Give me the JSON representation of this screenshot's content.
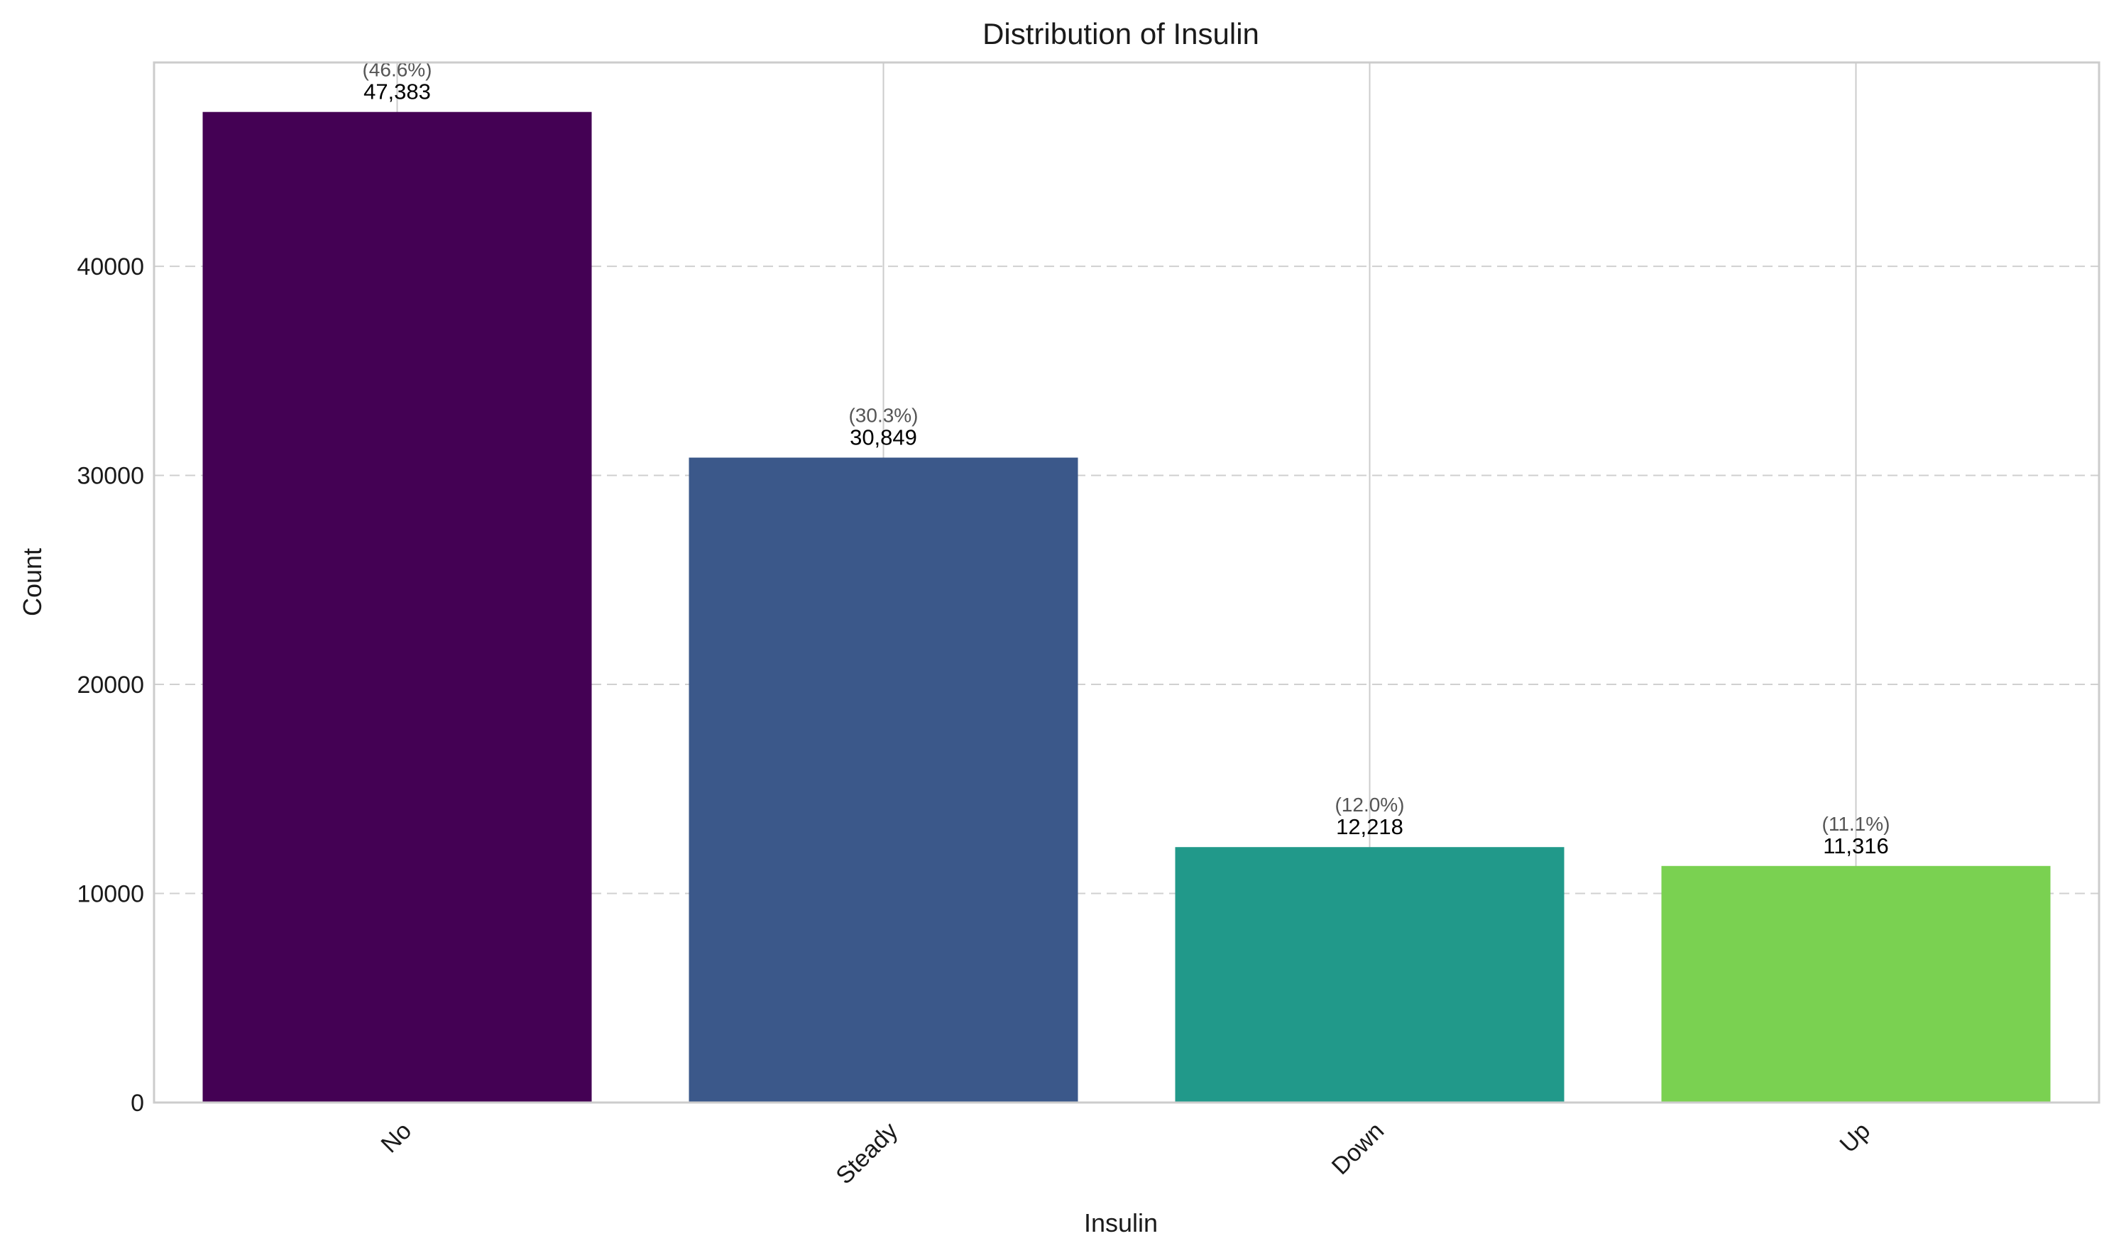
{
  "chart_data": {
    "type": "bar",
    "title": "Distribution of Insulin",
    "xlabel": "Insulin",
    "ylabel": "Count",
    "categories": [
      "No",
      "Steady",
      "Down",
      "Up"
    ],
    "values": [
      47383,
      30849,
      12218,
      11316
    ],
    "value_labels": [
      "47,383",
      "30,849",
      "12,218",
      "11,316"
    ],
    "percent_labels": [
      "(46.6%)",
      "(30.3%)",
      "(12.0%)",
      "(11.1%)"
    ],
    "colors": [
      "#440154",
      "#3b588a",
      "#21998a",
      "#7ad151"
    ],
    "ylim": [
      0,
      49750
    ],
    "yticks": [
      0,
      10000,
      20000,
      30000,
      40000
    ],
    "ytick_labels": [
      "0",
      "10000",
      "20000",
      "30000",
      "40000"
    ],
    "grid": true,
    "xtick_rotation": 45
  }
}
